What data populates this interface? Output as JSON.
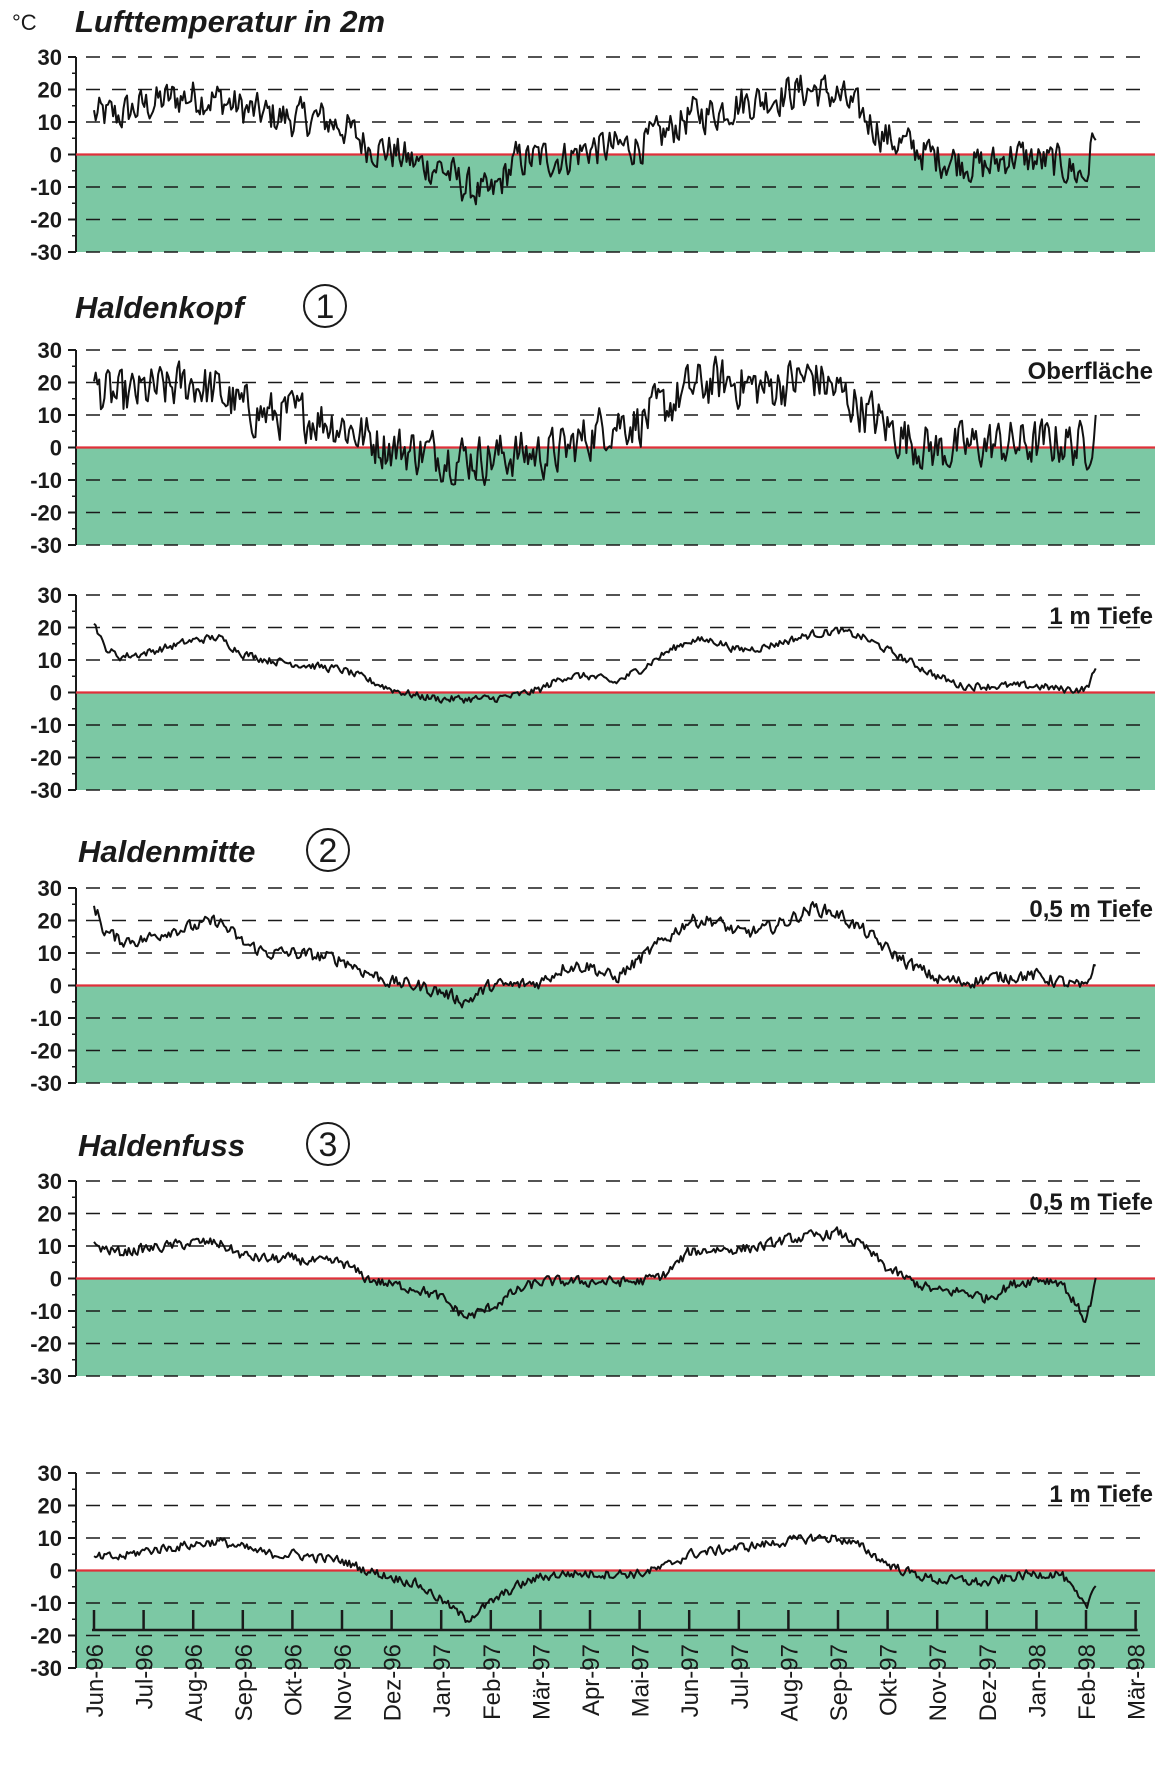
{
  "unit": "°C",
  "months": [
    "Jun-96",
    "Jul-96",
    "Aug-96",
    "Sep-96",
    "Okt-96",
    "Nov-96",
    "Dez-96",
    "Jan-97",
    "Feb-97",
    "Mär-97",
    "Apr-97",
    "Mai-97",
    "Jun-97",
    "Jul-97",
    "Aug-97",
    "Sep-97",
    "Okt-97",
    "Nov-97",
    "Dez-97",
    "Jan-98",
    "Feb-98",
    "Mär-98"
  ],
  "sections": [
    {
      "title": "Lufttemperatur in 2m",
      "number": ""
    },
    {
      "title": "Haldenkopf",
      "number": "1"
    },
    {
      "title": "Haldenmitte",
      "number": "2"
    },
    {
      "title": "Haldenfuss",
      "number": "3"
    }
  ],
  "colors": {
    "below_zero_fill": "#7cc8a4",
    "zero_line": "#e0303a",
    "series": "#111111",
    "grid": "#1a1a1a"
  },
  "chart_data": [
    {
      "type": "line",
      "section": "Lufttemperatur in 2m",
      "label": "",
      "ylim": [
        -30,
        30
      ],
      "yticks": [
        30,
        20,
        10,
        0,
        -10,
        -20,
        -30
      ],
      "grid": "dashed horizontal",
      "noise": 7,
      "series": [
        {
          "name": "",
          "x": [
            0,
            0.5,
            1,
            1.5,
            2,
            2.5,
            3,
            3.5,
            4,
            4.5,
            5,
            5.5,
            6,
            6.5,
            7,
            7.5,
            8,
            8.5,
            9,
            9.5,
            10,
            10.5,
            11,
            11.5,
            12,
            12.5,
            13,
            13.5,
            14,
            14.5,
            15,
            15.5,
            16,
            16.5,
            17,
            17.5,
            18,
            18.5,
            19,
            19.5,
            20,
            20.2
          ],
          "y": [
            12,
            12,
            15,
            17,
            18,
            17,
            14,
            12,
            11,
            11,
            9,
            3,
            1,
            -3,
            -4,
            -10,
            -13,
            -2,
            -1,
            -1,
            2,
            2,
            3,
            6,
            12,
            13,
            16,
            17,
            19,
            20,
            18,
            12,
            5,
            2,
            -1,
            -2,
            -4,
            0,
            -2,
            -3,
            -7,
            9
          ]
        }
      ]
    },
    {
      "type": "line",
      "section": "Haldenkopf",
      "label": "Oberfläche",
      "ylim": [
        -30,
        30
      ],
      "yticks": [
        30,
        20,
        10,
        0,
        -10,
        -20,
        -30
      ],
      "grid": "dashed horizontal",
      "noise": 9,
      "series": [
        {
          "name": "",
          "x": [
            0,
            0.5,
            1,
            1.5,
            2,
            2.5,
            3,
            3.5,
            4,
            4.5,
            5,
            5.5,
            6,
            6.5,
            7,
            7.5,
            8,
            8.5,
            9,
            9.5,
            10,
            10.5,
            11,
            11.5,
            12,
            12.5,
            13,
            13.5,
            14,
            14.5,
            15,
            15.5,
            16,
            16.5,
            17,
            17.5,
            18,
            18.5,
            19,
            19.5,
            20,
            20.2
          ],
          "y": [
            18,
            15,
            17,
            18,
            20,
            17,
            12,
            10,
            10,
            9,
            7,
            3,
            0,
            -1,
            -2,
            -3,
            -3,
            -2,
            -2,
            -1,
            4,
            8,
            8,
            12,
            18,
            20,
            20,
            18,
            20,
            22,
            17,
            12,
            6,
            2,
            -1,
            0,
            1,
            1,
            1,
            2,
            0,
            8
          ]
        }
      ]
    },
    {
      "type": "line",
      "section": "Haldenkopf",
      "label": "1 m Tiefe",
      "ylim": [
        -30,
        30
      ],
      "yticks": [
        30,
        20,
        10,
        0,
        -10,
        -20,
        -30
      ],
      "grid": "dashed horizontal",
      "noise": 1.5,
      "series": [
        {
          "name": "",
          "x": [
            0,
            0.2,
            0.5,
            1,
            1.5,
            2,
            2.5,
            3,
            3.5,
            4,
            4.5,
            5,
            5.5,
            6,
            6.5,
            7,
            7.5,
            8,
            8.5,
            9,
            9.5,
            10,
            10.5,
            11,
            11.5,
            12,
            12.5,
            13,
            13.5,
            14,
            14.5,
            15,
            15.5,
            16,
            16.5,
            17,
            17.5,
            18,
            18.5,
            19,
            19.5,
            20,
            20.2
          ],
          "y": [
            22,
            14,
            11,
            12,
            14,
            16,
            17,
            12,
            10,
            9,
            8,
            7,
            4,
            1,
            -1,
            -2,
            -2,
            -2,
            -1,
            1,
            5,
            5,
            3,
            7,
            12,
            16,
            16,
            13,
            14,
            16,
            18,
            19,
            17,
            13,
            9,
            5,
            2,
            2,
            2,
            2,
            1,
            1,
            7
          ]
        }
      ]
    },
    {
      "type": "line",
      "section": "Haldenmitte",
      "label": "0,5 m Tiefe",
      "ylim": [
        -30,
        30
      ],
      "yticks": [
        30,
        20,
        10,
        0,
        -10,
        -20,
        -30
      ],
      "grid": "dashed horizontal",
      "noise": 2.5,
      "series": [
        {
          "name": "",
          "x": [
            0,
            0.2,
            0.5,
            1,
            1.5,
            2,
            2.5,
            3,
            3.5,
            4,
            4.5,
            5,
            5.5,
            6,
            6.5,
            7,
            7.5,
            8,
            8.5,
            9,
            9.5,
            10,
            10.5,
            11,
            11.5,
            12,
            12.5,
            13,
            13.5,
            14,
            14.5,
            15,
            15.5,
            16,
            16.5,
            17,
            17.5,
            18,
            18.5,
            19,
            19.5,
            20,
            20.2
          ],
          "y": [
            25,
            17,
            14,
            14,
            17,
            18,
            20,
            13,
            10,
            10,
            9,
            8,
            4,
            1,
            0,
            -2,
            -5,
            0,
            0,
            1,
            6,
            6,
            2,
            8,
            14,
            20,
            20,
            16,
            17,
            20,
            24,
            22,
            17,
            11,
            6,
            2,
            1,
            2,
            3,
            3,
            1,
            -1,
            8
          ]
        }
      ]
    },
    {
      "type": "line",
      "section": "Haldenfuss",
      "label": "0,5 m Tiefe",
      "ylim": [
        -30,
        30
      ],
      "yticks": [
        30,
        20,
        10,
        0,
        -10,
        -20,
        -30
      ],
      "grid": "dashed horizontal",
      "noise": 2,
      "series": [
        {
          "name": "",
          "x": [
            0,
            0.5,
            1,
            1.5,
            2,
            2.5,
            3,
            3.5,
            4,
            4.5,
            5,
            5.5,
            6,
            6.5,
            7,
            7.5,
            8,
            8.5,
            9,
            9.5,
            10,
            10.5,
            11,
            11.5,
            12,
            12.5,
            13,
            13.5,
            14,
            14.5,
            15,
            15.5,
            16,
            16.5,
            17,
            17.5,
            18,
            18.5,
            19,
            19.5,
            20,
            20.2
          ],
          "y": [
            10,
            8,
            9,
            10,
            11,
            11,
            7,
            6,
            6,
            5,
            5,
            0,
            -2,
            -3,
            -6,
            -12,
            -9,
            -4,
            -1,
            -1,
            -1,
            -1,
            -1,
            1,
            8,
            9,
            9,
            10,
            12,
            13,
            14,
            10,
            3,
            -1,
            -4,
            -4,
            -6,
            -2,
            0,
            -1,
            -13,
            -1
          ]
        }
      ]
    },
    {
      "type": "line",
      "section": "Haldenfuss",
      "label": "1 m Tiefe",
      "ylim": [
        -30,
        30
      ],
      "yticks": [
        30,
        20,
        10,
        0,
        -10,
        -20,
        -30
      ],
      "grid": "dashed horizontal",
      "noise": 1.8,
      "series": [
        {
          "name": "",
          "x": [
            0,
            0.5,
            1,
            1.5,
            2,
            2.5,
            3,
            3.5,
            4,
            4.5,
            5,
            5.5,
            6,
            6.5,
            7,
            7.5,
            8,
            8.5,
            9,
            9.5,
            10,
            10.5,
            11,
            11.5,
            12,
            12.5,
            13,
            13.5,
            14,
            14.5,
            15,
            15.5,
            16,
            16.5,
            17,
            17.5,
            18,
            18.5,
            19,
            19.5,
            20,
            20.2
          ],
          "y": [
            4,
            4,
            6,
            7,
            8,
            9,
            7,
            5,
            5,
            4,
            3,
            0,
            -2,
            -4,
            -9,
            -15,
            -10,
            -5,
            -2,
            -1,
            -1,
            -1,
            -1,
            1,
            5,
            6,
            7,
            8,
            9,
            10,
            10,
            7,
            2,
            -1,
            -3,
            -3,
            -4,
            -2,
            -1,
            -1,
            -12,
            -3
          ]
        }
      ]
    }
  ]
}
